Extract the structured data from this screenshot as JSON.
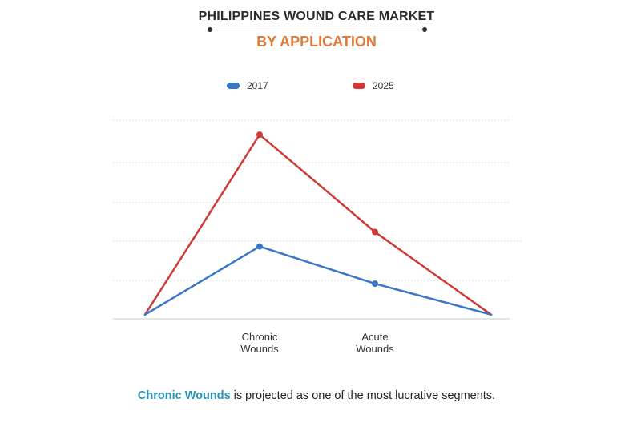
{
  "header": {
    "title": "PHILIPPINES WOUND CARE MARKET",
    "subtitle": "BY APPLICATION"
  },
  "chart_data": {
    "type": "line",
    "categories": [
      "",
      "Chronic\nWounds",
      "Acute\nWounds",
      ""
    ],
    "series": [
      {
        "name": "2017",
        "color": "#3a76c8",
        "values": [
          0.1,
          1.75,
          0.85,
          0.1
        ]
      },
      {
        "name": "2025",
        "color": "#cf3a36",
        "values": [
          0.1,
          4.45,
          2.1,
          0.1
        ]
      }
    ],
    "ylim": [
      0,
      4.8
    ],
    "grid": true,
    "legend": "top-center",
    "title": "",
    "xlabel": "",
    "ylabel": ""
  },
  "footer": {
    "highlight": "Chronic Wounds",
    "text": " is projected as one of the most lucrative segments."
  }
}
